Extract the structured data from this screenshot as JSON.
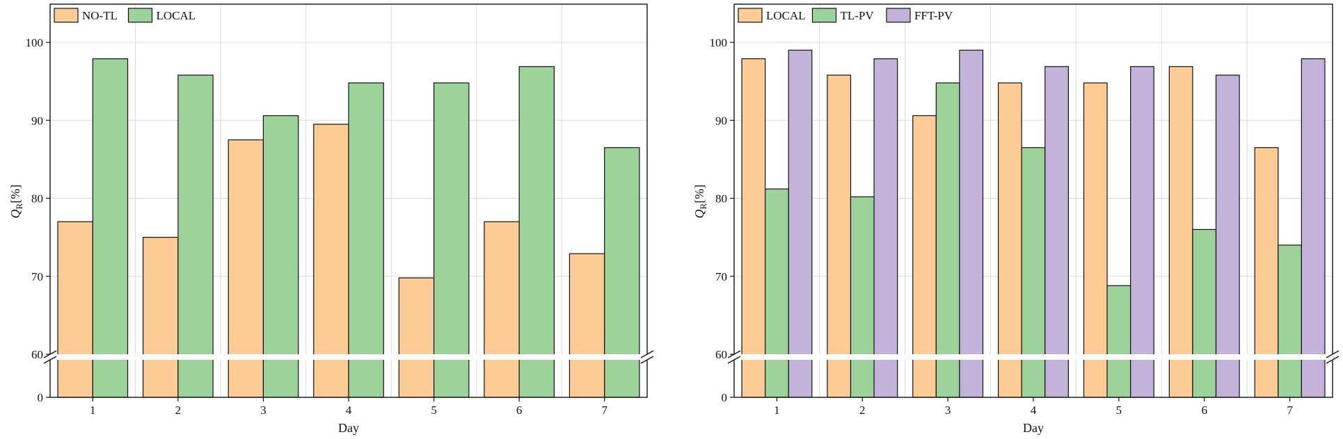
{
  "chart_data": [
    {
      "type": "bar",
      "title": "",
      "xlabel": "Day",
      "ylabel_main": "Q",
      "ylabel_sub": "R",
      "ylabel_unit": "[%]",
      "categories": [
        "1",
        "2",
        "3",
        "4",
        "5",
        "6",
        "7"
      ],
      "y_ticks_upper": [
        "100",
        "90",
        "80",
        "70",
        "60"
      ],
      "y_tick_break_bottom": "0",
      "ylim": [
        60,
        105
      ],
      "axis_break": true,
      "grid": true,
      "legend_position": "top-left",
      "series": [
        {
          "name": "NO-TL",
          "color": "#FDCB96",
          "values": [
            77.0,
            75.0,
            87.5,
            89.5,
            69.8,
            77.0,
            72.9
          ]
        },
        {
          "name": "LOCAL",
          "color": "#9DD29A",
          "values": [
            97.9,
            95.8,
            90.6,
            94.8,
            94.8,
            96.9,
            86.5
          ]
        }
      ]
    },
    {
      "type": "bar",
      "title": "",
      "xlabel": "Day",
      "ylabel_main": "Q",
      "ylabel_sub": "R",
      "ylabel_unit": "[%]",
      "categories": [
        "1",
        "2",
        "3",
        "4",
        "5",
        "6",
        "7"
      ],
      "y_ticks_upper": [
        "100",
        "90",
        "80",
        "70",
        "60"
      ],
      "y_tick_break_bottom": "0",
      "ylim": [
        60,
        105
      ],
      "axis_break": true,
      "grid": true,
      "legend_position": "top-left",
      "series": [
        {
          "name": "LOCAL",
          "color": "#FDCB96",
          "values": [
            97.9,
            95.8,
            90.6,
            94.8,
            94.8,
            96.9,
            86.5
          ]
        },
        {
          "name": "TL-PV",
          "color": "#9DD29A",
          "values": [
            81.2,
            80.2,
            94.8,
            86.5,
            68.8,
            76.0,
            74.0
          ]
        },
        {
          "name": "FFT-PV",
          "color": "#C3B2DA",
          "values": [
            99.0,
            97.9,
            99.0,
            96.9,
            96.9,
            95.8,
            97.9
          ]
        }
      ]
    }
  ]
}
